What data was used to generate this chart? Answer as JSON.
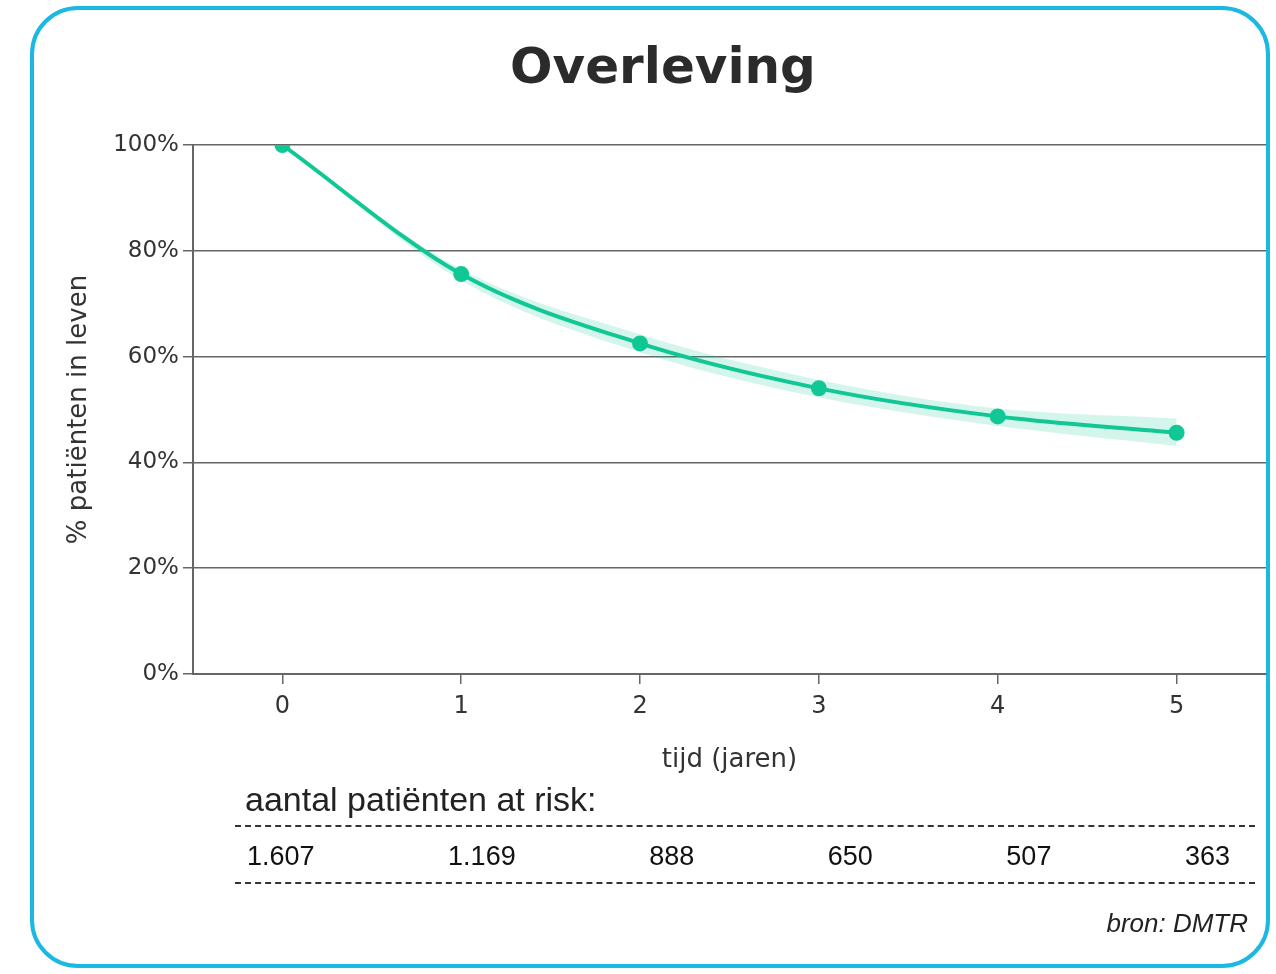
{
  "chart_data": {
    "type": "line",
    "title": "Overleving",
    "xlabel": "tijd (jaren)",
    "ylabel": "% patiënten in leven",
    "x": [
      0,
      1,
      2,
      3,
      4,
      5
    ],
    "series": [
      {
        "color": "#10c795",
        "values": [
          100,
          75.6,
          62.5,
          54.0,
          48.7,
          45.6
        ],
        "lower": [
          100,
          74.4,
          60.8,
          52.3,
          46.9,
          43.1
        ],
        "upper": [
          100,
          76.5,
          64.2,
          55.6,
          50.2,
          48.3
        ]
      }
    ],
    "xlim": [
      -0.5,
      5.5
    ],
    "xticks": [
      0,
      1,
      2,
      3,
      4,
      5
    ],
    "ylim": [
      0,
      100
    ],
    "yticks": [
      {
        "value": 0,
        "label": "0%"
      },
      {
        "value": 20,
        "label": "20%"
      },
      {
        "value": 40,
        "label": "40%"
      },
      {
        "value": 60,
        "label": "60%"
      },
      {
        "value": 80,
        "label": "80%"
      },
      {
        "value": 100,
        "label": "100%"
      }
    ],
    "grid": "y",
    "legend": false,
    "marker": "circle",
    "line_style": "solid",
    "annotations": [
      "aantal patiënten at risk:",
      "1.607",
      "1.169",
      "888",
      "650",
      "507",
      "363",
      "bron: DMTR"
    ]
  }
}
